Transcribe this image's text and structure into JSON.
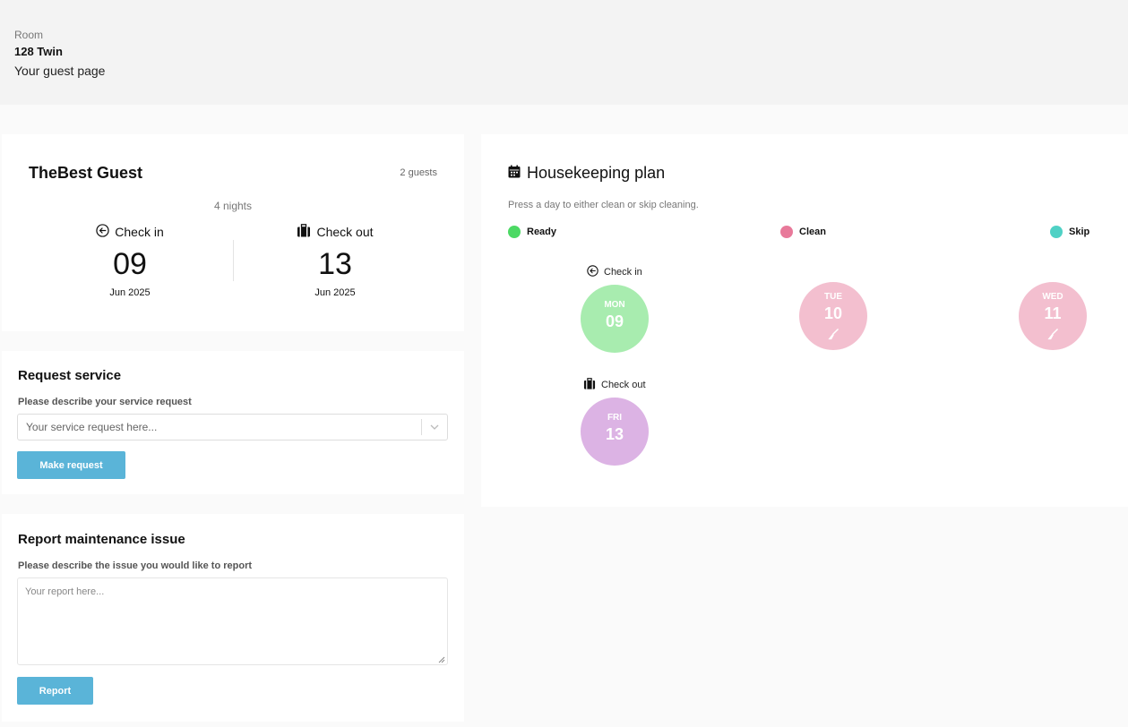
{
  "header": {
    "room_label": "Room",
    "room_name": "128 Twin",
    "page_title": "Your guest page"
  },
  "guest": {
    "name": "TheBest Guest",
    "guest_count": "2 guests",
    "nights": "4 nights",
    "check_in": {
      "label": "Check in",
      "day": "09",
      "month": "Jun 2025",
      "icon": "arrow-left-circle-icon"
    },
    "check_out": {
      "label": "Check out",
      "day": "13",
      "month": "Jun 2025",
      "icon": "luggage-icon"
    }
  },
  "request": {
    "title": "Request service",
    "field_label": "Please describe your service request",
    "placeholder": "Your service request here...",
    "button": "Make request"
  },
  "report": {
    "title": "Report maintenance issue",
    "field_label": "Please describe the issue you would like to report",
    "placeholder": "Your report here...",
    "button": "Report"
  },
  "housekeeping": {
    "title": "Housekeeping plan",
    "hint": "Press a day to either clean or skip cleaning.",
    "legend": [
      {
        "label": "Ready",
        "color": "#4cd964"
      },
      {
        "label": "Clean",
        "color": "#e8799a"
      },
      {
        "label": "Skip",
        "color": "#4fd1c5"
      }
    ],
    "days": [
      {
        "name": "MON",
        "num": "09",
        "tag": "Check in",
        "color": "#a8ecaf"
      },
      {
        "name": "TUE",
        "num": "10",
        "tag": "",
        "color": "#f3bfcf"
      },
      {
        "name": "WED",
        "num": "11",
        "tag": "",
        "color": "#f3bfcf"
      },
      {
        "name": "FRI",
        "num": "13",
        "tag": "Check out",
        "color": "#dcb3e4"
      }
    ]
  },
  "colors": {
    "accent": "#5ab4d8",
    "ready": "#4cd964",
    "clean": "#e8799a",
    "skip": "#4fd1c5"
  }
}
